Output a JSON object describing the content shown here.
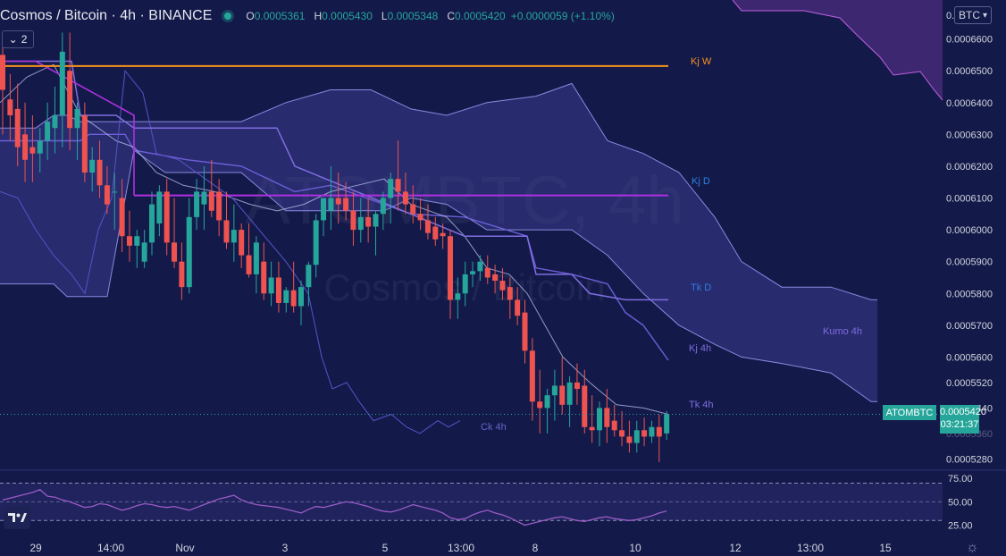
{
  "header": {
    "symbol": "Cosmos / Bitcoin",
    "interval": "4h",
    "exchange": "BINANCE",
    "open_label": "O",
    "open": "0.0005361",
    "high_label": "H",
    "high": "0.0005430",
    "low_label": "L",
    "low": "0.0005348",
    "close_label": "C",
    "close": "0.0005420",
    "change": "+0.0000059 (+1.10%)"
  },
  "collapse_button": {
    "label": "2"
  },
  "currency_button": {
    "label": "BTC"
  },
  "last_price": {
    "symbol": "ATOMBTC",
    "price": "0.0005420",
    "countdown": "03:21:37"
  },
  "settings": {
    "icon": "gear-icon"
  },
  "logo": {
    "icon": "tradingview-logo-icon"
  },
  "colors": {
    "background": "#131a4a",
    "up": "#26a69a",
    "down": "#ef5350",
    "kj_w": "#f7931a",
    "kj_d": "#b030e0",
    "tk_d": "#7f6ee0",
    "kumo": "#3b3b8c",
    "rsi": "#9a5cc7"
  },
  "chart_data": {
    "type": "candlestick",
    "watermark": {
      "ticker": "ATOMBTC, 4h",
      "name": "Cosmos / Bitcoin"
    },
    "y_range": [
      0.000525,
      0.00067
    ],
    "x_ticks": [
      "29",
      "14:00",
      "Nov",
      "3",
      "5",
      "13:00",
      "8",
      "10",
      "12",
      "13:00",
      "15"
    ],
    "y_ticks": [
      "0.0006600",
      "0.0006500",
      "0.0006400",
      "0.0006300",
      "0.0006200",
      "0.0006100",
      "0.0006000",
      "0.0005900",
      "0.0005800",
      "0.0005700",
      "0.0005600",
      "0.0005520",
      "0.0005440",
      "0.0005360",
      "0.0005280"
    ],
    "candles": [
      {
        "o": 0.000655,
        "h": 0.00066,
        "l": 0.00063,
        "c": 0.000644
      },
      {
        "o": 0.000641,
        "h": 0.000649,
        "l": 0.000628,
        "c": 0.000636
      },
      {
        "o": 0.000638,
        "h": 0.000646,
        "l": 0.00062,
        "c": 0.000626
      },
      {
        "o": 0.00063,
        "h": 0.00064,
        "l": 0.000615,
        "c": 0.000622
      },
      {
        "o": 0.000626,
        "h": 0.000636,
        "l": 0.000615,
        "c": 0.000624
      },
      {
        "o": 0.000624,
        "h": 0.000632,
        "l": 0.000618,
        "c": 0.000628
      },
      {
        "o": 0.000628,
        "h": 0.00064,
        "l": 0.000622,
        "c": 0.000634
      },
      {
        "o": 0.000632,
        "h": 0.000645,
        "l": 0.000624,
        "c": 0.000636
      },
      {
        "o": 0.000636,
        "h": 0.000662,
        "l": 0.000626,
        "c": 0.000656
      },
      {
        "o": 0.00065,
        "h": 0.000662,
        "l": 0.000625,
        "c": 0.000632
      },
      {
        "o": 0.000632,
        "h": 0.00064,
        "l": 0.000622,
        "c": 0.000638
      },
      {
        "o": 0.000636,
        "h": 0.00064,
        "l": 0.000615,
        "c": 0.000618
      },
      {
        "o": 0.000618,
        "h": 0.000626,
        "l": 0.000612,
        "c": 0.000622
      },
      {
        "o": 0.000622,
        "h": 0.000628,
        "l": 0.00061,
        "c": 0.000614
      },
      {
        "o": 0.000614,
        "h": 0.00062,
        "l": 0.000605,
        "c": 0.000608
      },
      {
        "o": 0.000612,
        "h": 0.000618,
        "l": 0.0006,
        "c": 0.000612
      },
      {
        "o": 0.00061,
        "h": 0.000616,
        "l": 0.000593,
        "c": 0.000598
      },
      {
        "o": 0.000598,
        "h": 0.000606,
        "l": 0.00059,
        "c": 0.000595
      },
      {
        "o": 0.000595,
        "h": 0.0006,
        "l": 0.000588,
        "c": 0.000598
      },
      {
        "o": 0.00059,
        "h": 0.0006,
        "l": 0.000588,
        "c": 0.000596
      },
      {
        "o": 0.000596,
        "h": 0.000612,
        "l": 0.000592,
        "c": 0.000608
      },
      {
        "o": 0.000602,
        "h": 0.000614,
        "l": 0.000598,
        "c": 0.000612
      },
      {
        "o": 0.000612,
        "h": 0.000616,
        "l": 0.000592,
        "c": 0.000596
      },
      {
        "o": 0.000596,
        "h": 0.00061,
        "l": 0.000588,
        "c": 0.00059
      },
      {
        "o": 0.00059,
        "h": 0.000596,
        "l": 0.000578,
        "c": 0.000582
      },
      {
        "o": 0.000582,
        "h": 0.00061,
        "l": 0.00058,
        "c": 0.000604
      },
      {
        "o": 0.000604,
        "h": 0.000616,
        "l": 0.0006,
        "c": 0.000612
      },
      {
        "o": 0.000608,
        "h": 0.00062,
        "l": 0.0006,
        "c": 0.000612
      },
      {
        "o": 0.000612,
        "h": 0.000622,
        "l": 0.000604,
        "c": 0.000606
      },
      {
        "o": 0.000612,
        "h": 0.000616,
        "l": 0.000598,
        "c": 0.000603
      },
      {
        "o": 0.000603,
        "h": 0.000612,
        "l": 0.000594,
        "c": 0.000596
      },
      {
        "o": 0.000596,
        "h": 0.000608,
        "l": 0.00059,
        "c": 0.0006
      },
      {
        "o": 0.0006,
        "h": 0.000602,
        "l": 0.000588,
        "c": 0.000592
      },
      {
        "o": 0.000592,
        "h": 0.000602,
        "l": 0.000585,
        "c": 0.000586
      },
      {
        "o": 0.000586,
        "h": 0.000598,
        "l": 0.00058,
        "c": 0.000596
      },
      {
        "o": 0.00059,
        "h": 0.000596,
        "l": 0.000578,
        "c": 0.00058
      },
      {
        "o": 0.00058,
        "h": 0.00059,
        "l": 0.000576,
        "c": 0.000585
      },
      {
        "o": 0.000585,
        "h": 0.00059,
        "l": 0.000574,
        "c": 0.000577
      },
      {
        "o": 0.000577,
        "h": 0.000582,
        "l": 0.000574,
        "c": 0.000581
      },
      {
        "o": 0.000581,
        "h": 0.00059,
        "l": 0.000574,
        "c": 0.000576
      },
      {
        "o": 0.000576,
        "h": 0.000584,
        "l": 0.00057,
        "c": 0.000582
      },
      {
        "o": 0.000582,
        "h": 0.00059,
        "l": 0.000576,
        "c": 0.000589
      },
      {
        "o": 0.000589,
        "h": 0.000605,
        "l": 0.000585,
        "c": 0.000603
      },
      {
        "o": 0.000603,
        "h": 0.00061,
        "l": 0.000598,
        "c": 0.00061
      },
      {
        "o": 0.000606,
        "h": 0.00062,
        "l": 0.0006,
        "c": 0.00061
      },
      {
        "o": 0.00061,
        "h": 0.000618,
        "l": 0.000602,
        "c": 0.000608
      },
      {
        "o": 0.00061,
        "h": 0.000615,
        "l": 0.000603,
        "c": 0.000606
      },
      {
        "o": 0.000606,
        "h": 0.000612,
        "l": 0.000595,
        "c": 0.0006
      },
      {
        "o": 0.0006,
        "h": 0.00061,
        "l": 0.000596,
        "c": 0.000604
      },
      {
        "o": 0.000604,
        "h": 0.00061,
        "l": 0.000596,
        "c": 0.000601
      },
      {
        "o": 0.000601,
        "h": 0.000606,
        "l": 0.000592,
        "c": 0.000605
      },
      {
        "o": 0.000605,
        "h": 0.000612,
        "l": 0.0006,
        "c": 0.00061
      },
      {
        "o": 0.00061,
        "h": 0.000618,
        "l": 0.000602,
        "c": 0.000616
      },
      {
        "o": 0.000616,
        "h": 0.000628,
        "l": 0.000606,
        "c": 0.000612
      },
      {
        "o": 0.000612,
        "h": 0.000618,
        "l": 0.000605,
        "c": 0.000608
      },
      {
        "o": 0.000608,
        "h": 0.000614,
        "l": 0.000602,
        "c": 0.000605
      },
      {
        "o": 0.000605,
        "h": 0.00061,
        "l": 0.0006,
        "c": 0.000603
      },
      {
        "o": 0.000603,
        "h": 0.000608,
        "l": 0.000597,
        "c": 0.000599
      },
      {
        "o": 0.000601,
        "h": 0.000604,
        "l": 0.000595,
        "c": 0.000597
      },
      {
        "o": 0.000599,
        "h": 0.000602,
        "l": 0.000594,
        "c": 0.000598
      },
      {
        "o": 0.000598,
        "h": 0.0006,
        "l": 0.000572,
        "c": 0.000578
      },
      {
        "o": 0.000578,
        "h": 0.000585,
        "l": 0.000572,
        "c": 0.00058
      },
      {
        "o": 0.00058,
        "h": 0.00059,
        "l": 0.000576,
        "c": 0.000586
      },
      {
        "o": 0.000586,
        "h": 0.00059,
        "l": 0.000582,
        "c": 0.000587
      },
      {
        "o": 0.000587,
        "h": 0.000592,
        "l": 0.000584,
        "c": 0.00059
      },
      {
        "o": 0.000588,
        "h": 0.000592,
        "l": 0.000583,
        "c": 0.000585
      },
      {
        "o": 0.000586,
        "h": 0.000589,
        "l": 0.00058,
        "c": 0.000584
      },
      {
        "o": 0.000584,
        "h": 0.000588,
        "l": 0.000578,
        "c": 0.000581
      },
      {
        "o": 0.000582,
        "h": 0.000585,
        "l": 0.000572,
        "c": 0.000578
      },
      {
        "o": 0.000578,
        "h": 0.000582,
        "l": 0.00057,
        "c": 0.000573
      },
      {
        "o": 0.000574,
        "h": 0.000578,
        "l": 0.000558,
        "c": 0.000562
      },
      {
        "o": 0.000562,
        "h": 0.000566,
        "l": 0.00054,
        "c": 0.000546
      },
      {
        "o": 0.000546,
        "h": 0.000556,
        "l": 0.000536,
        "c": 0.000544
      },
      {
        "o": 0.000544,
        "h": 0.00055,
        "l": 0.000536,
        "c": 0.000548
      },
      {
        "o": 0.000548,
        "h": 0.000556,
        "l": 0.00054,
        "c": 0.000551
      },
      {
        "o": 0.000551,
        "h": 0.00056,
        "l": 0.000542,
        "c": 0.000545
      },
      {
        "o": 0.000545,
        "h": 0.000554,
        "l": 0.000538,
        "c": 0.000552
      },
      {
        "o": 0.000552,
        "h": 0.000558,
        "l": 0.000545,
        "c": 0.00055
      },
      {
        "o": 0.000551,
        "h": 0.000556,
        "l": 0.000536,
        "c": 0.000538
      },
      {
        "o": 0.000538,
        "h": 0.000548,
        "l": 0.000533,
        "c": 0.000537
      },
      {
        "o": 0.000537,
        "h": 0.000546,
        "l": 0.000532,
        "c": 0.000544
      },
      {
        "o": 0.000544,
        "h": 0.00055,
        "l": 0.000533,
        "c": 0.000538
      },
      {
        "o": 0.00054,
        "h": 0.000545,
        "l": 0.000535,
        "c": 0.000537
      },
      {
        "o": 0.000537,
        "h": 0.000543,
        "l": 0.000532,
        "c": 0.000535
      },
      {
        "o": 0.000535,
        "h": 0.00054,
        "l": 0.00053,
        "c": 0.000533
      },
      {
        "o": 0.000533,
        "h": 0.00054,
        "l": 0.00053,
        "c": 0.000537
      },
      {
        "o": 0.000537,
        "h": 0.000541,
        "l": 0.000532,
        "c": 0.000535
      },
      {
        "o": 0.000535,
        "h": 0.00054,
        "l": 0.000533,
        "c": 0.000538
      },
      {
        "o": 0.000538,
        "h": 0.000542,
        "l": 0.000527,
        "c": 0.000535
      },
      {
        "o": 0.000536,
        "h": 0.000543,
        "l": 0.000534,
        "c": 0.000542
      }
    ],
    "horizontal_levels": [
      {
        "name": "Kj W",
        "value": 0.0006515,
        "color": "#f7931a"
      },
      {
        "name": "Kj D",
        "value": 0.0006108,
        "color": "#b030e0"
      }
    ],
    "line_labels": [
      {
        "text": "Kj W",
        "color": "#f7931a"
      },
      {
        "text": "Kj D",
        "color": "#2f7fe0"
      },
      {
        "text": "Tk D",
        "color": "#2f7fe0"
      },
      {
        "text": "Kj 4h",
        "color": "#7f6ee0"
      },
      {
        "text": "Tk 4h",
        "color": "#7f6ee0"
      },
      {
        "text": "Ck 4h",
        "color": "#6a62c8"
      },
      {
        "text": "Kumo 4h",
        "color": "#7f6ee0"
      }
    ],
    "kumo_4h": {
      "x": [
        0,
        20,
        40,
        60,
        75,
        90,
        120,
        150,
        185,
        225,
        270,
        320,
        370,
        415,
        430,
        460,
        500,
        545,
        600,
        640,
        680,
        720,
        760,
        800,
        830,
        875,
        930,
        975,
        982
      ],
      "upper": [
        0.000632,
        0.000632,
        0.000632,
        0.000636,
        0.000636,
        0.000634,
        0.000634,
        0.000634,
        0.000634,
        0.000634,
        0.000634,
        0.00064,
        0.000644,
        0.000644,
        0.000642,
        0.000638,
        0.000636,
        0.00064,
        0.000642,
        0.000646,
        0.000628,
        0.000624,
        0.000618,
        0.000604,
        0.00059,
        0.000582,
        0.000582,
        0.000578,
        0.000578
      ],
      "lower": [
        0.000583,
        0.000583,
        0.000583,
        0.000583,
        0.000579,
        0.000579,
        0.000579,
        0.000625,
        0.000618,
        0.000618,
        0.000618,
        0.000606,
        0.000606,
        0.000606,
        0.000606,
        0.00061,
        0.000608,
        0.0006,
        0.0006,
        0.0006,
        0.000592,
        0.00058,
        0.00057,
        0.000564,
        0.00056,
        0.000558,
        0.000555,
        0.000546,
        0.000546
      ]
    },
    "rsi": {
      "y_ticks": [
        "75.00",
        "50.00",
        "25.00"
      ],
      "upper_band": 70,
      "lower_band": 30,
      "mid": 50,
      "values": [
        52,
        54,
        56,
        58,
        60,
        63,
        56,
        55,
        52,
        50,
        47,
        44,
        45,
        48,
        47,
        44,
        41,
        43,
        46,
        48,
        47,
        45,
        44,
        45,
        43,
        41,
        44,
        47,
        50,
        53,
        55,
        57,
        52,
        49,
        47,
        46,
        45,
        44,
        42,
        40,
        38,
        42,
        45,
        44,
        46,
        48,
        50,
        49,
        47,
        45,
        42,
        40,
        39,
        41,
        44,
        47,
        45,
        43,
        41,
        38,
        33,
        31,
        32,
        36,
        39,
        41,
        38,
        36,
        33,
        29,
        25,
        27,
        29,
        31,
        33,
        34,
        32,
        30,
        29,
        31,
        33,
        34,
        32,
        31,
        30,
        31,
        33,
        35,
        38,
        40
      ]
    }
  }
}
